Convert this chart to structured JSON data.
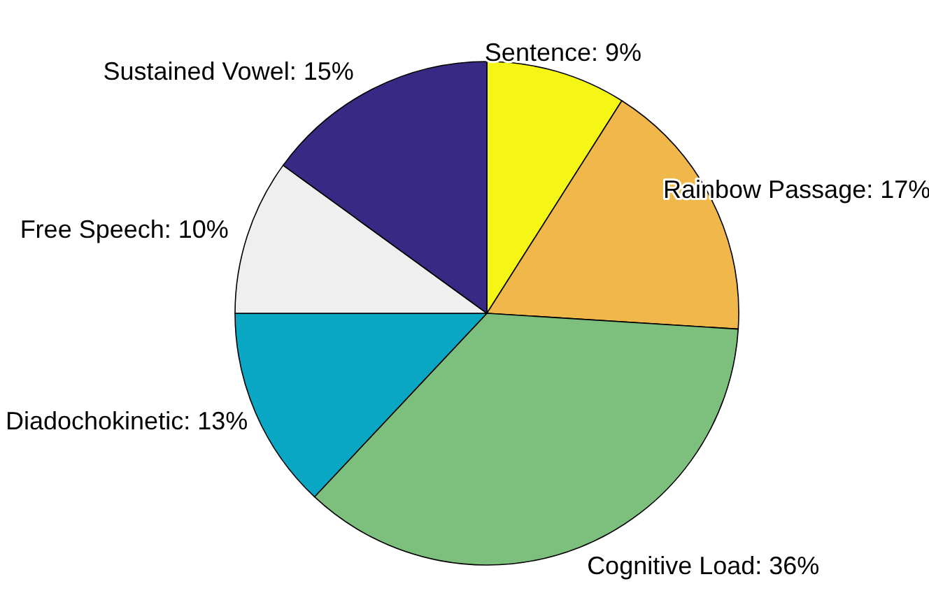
{
  "chart_data": {
    "type": "pie",
    "categories": [
      "Sentence: 9%",
      "Rainbow Passage: 17%",
      "Cognitive Load: 36%",
      "Diadochokinetic: 13%",
      "Free Speech: 10%",
      "Sustained Vowel: 15%"
    ],
    "values": [
      9,
      17,
      36,
      13,
      10,
      15
    ],
    "colors": [
      "#f5f516",
      "#f0b84a",
      "#7dbf7d",
      "#0aa7c4",
      "#efefef",
      "#382a84"
    ]
  }
}
